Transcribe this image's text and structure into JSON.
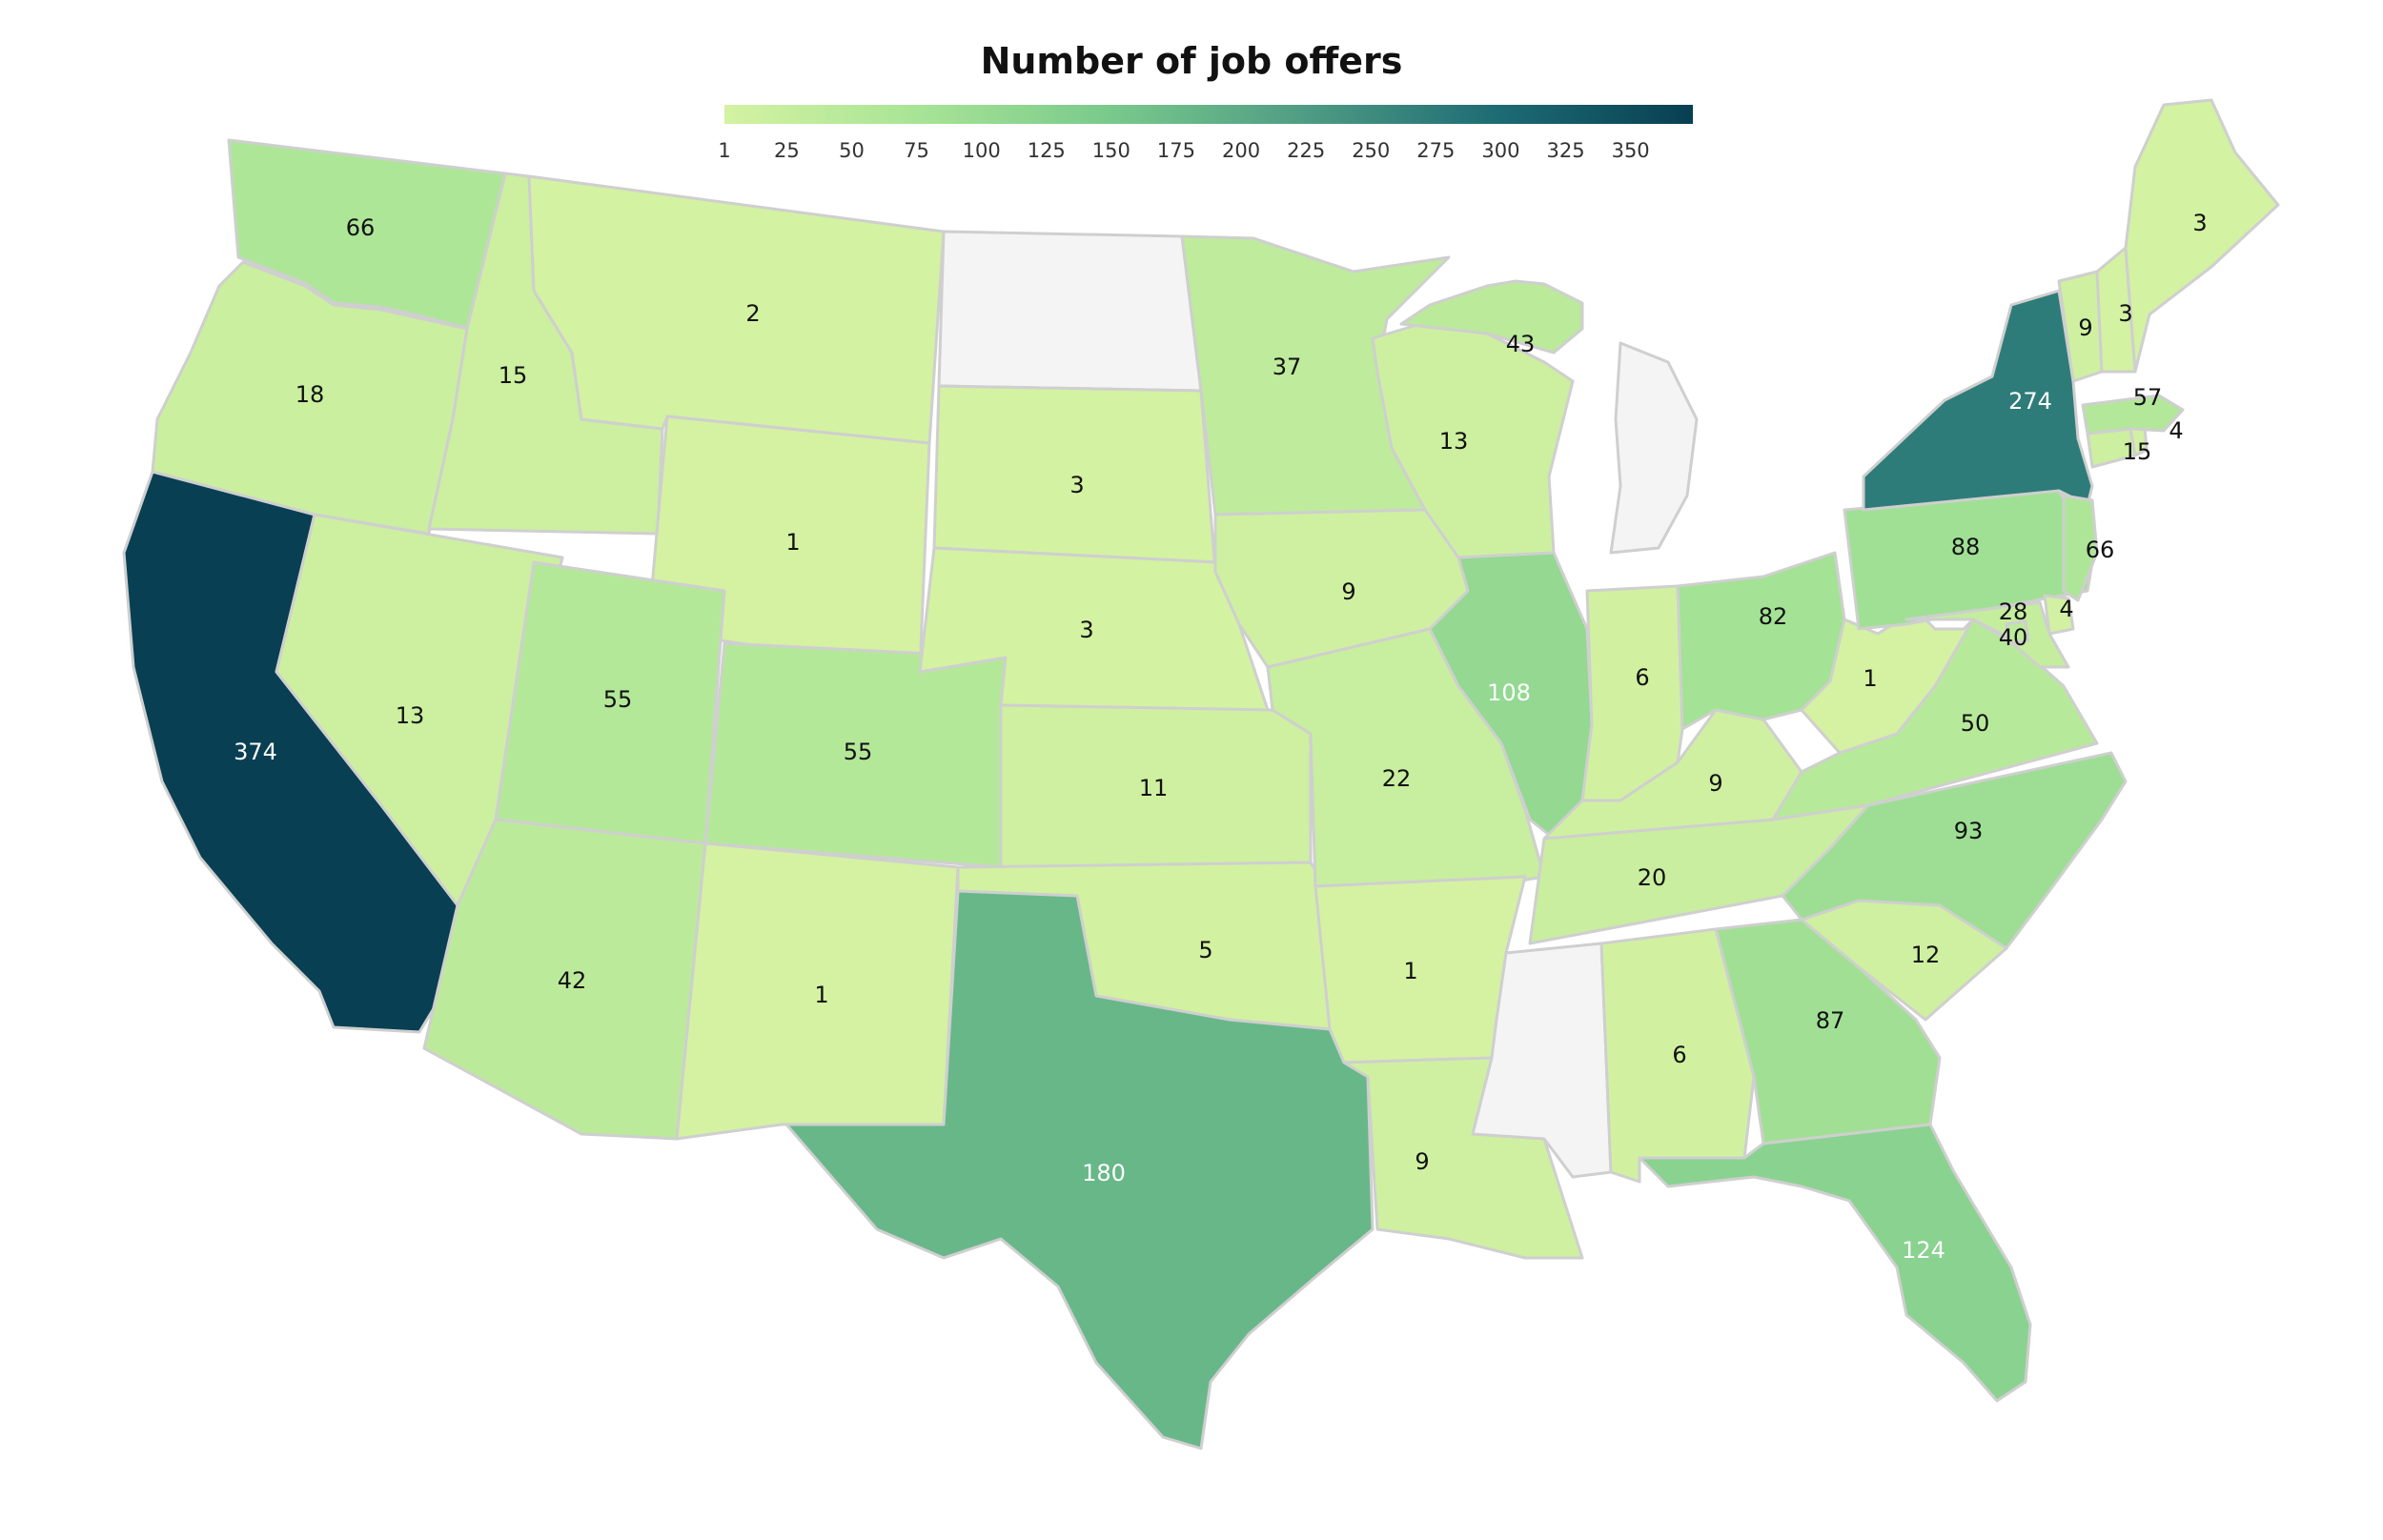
{
  "title": "Number of job offers",
  "legend": {
    "ticks": [
      "1",
      "25",
      "50",
      "75",
      "100",
      "125",
      "150",
      "175",
      "200",
      "225",
      "250",
      "275",
      "300",
      "325",
      "350"
    ],
    "tick_values": [
      1,
      25,
      50,
      75,
      100,
      125,
      150,
      175,
      200,
      225,
      250,
      275,
      300,
      325,
      350
    ],
    "range": [
      1,
      374
    ],
    "colors": [
      "#d4f2a2",
      "#a8e496",
      "#79c98c",
      "#4f9c84",
      "#1d6b74",
      "#083f52"
    ]
  },
  "no_data_color": "#f4f4f4",
  "states": [
    {
      "id": "WA",
      "value": 66
    },
    {
      "id": "OR",
      "value": 18
    },
    {
      "id": "CA",
      "value": 374
    },
    {
      "id": "ID",
      "value": 15
    },
    {
      "id": "NV",
      "value": 13
    },
    {
      "id": "MT",
      "value": 2
    },
    {
      "id": "WY",
      "value": 1
    },
    {
      "id": "UT",
      "value": 55
    },
    {
      "id": "AZ",
      "value": 42
    },
    {
      "id": "CO",
      "value": 55
    },
    {
      "id": "NM",
      "value": 1
    },
    {
      "id": "ND",
      "value": null
    },
    {
      "id": "SD",
      "value": 3
    },
    {
      "id": "NE",
      "value": 3
    },
    {
      "id": "KS",
      "value": 11
    },
    {
      "id": "OK",
      "value": 5
    },
    {
      "id": "TX",
      "value": 180
    },
    {
      "id": "MN",
      "value": 37
    },
    {
      "id": "IA",
      "value": 9
    },
    {
      "id": "MO",
      "value": 22
    },
    {
      "id": "AR",
      "value": 1
    },
    {
      "id": "LA",
      "value": 9
    },
    {
      "id": "WI",
      "value": 13
    },
    {
      "id": "IL",
      "value": 108
    },
    {
      "id": "MS",
      "value": null
    },
    {
      "id": "MI-UP",
      "value": 43
    },
    {
      "id": "MI",
      "value": null
    },
    {
      "id": "IN",
      "value": 6
    },
    {
      "id": "KY",
      "value": 9
    },
    {
      "id": "TN",
      "value": 20
    },
    {
      "id": "AL",
      "value": 6
    },
    {
      "id": "OH",
      "value": 82
    },
    {
      "id": "GA",
      "value": 87
    },
    {
      "id": "FL",
      "value": 124
    },
    {
      "id": "SC",
      "value": 12
    },
    {
      "id": "NC",
      "value": 93
    },
    {
      "id": "VA",
      "value": 50
    },
    {
      "id": "WV",
      "value": 1
    },
    {
      "id": "PA",
      "value": 88
    },
    {
      "id": "NY",
      "value": 274
    },
    {
      "id": "NJ",
      "value": 66
    },
    {
      "id": "DE",
      "value": 4
    },
    {
      "id": "MD",
      "value": 28
    },
    {
      "id": "DC",
      "value": 40
    },
    {
      "id": "CT",
      "value": 15
    },
    {
      "id": "RI",
      "value": 4
    },
    {
      "id": "MA",
      "value": 57
    },
    {
      "id": "VT",
      "value": 9
    },
    {
      "id": "NH",
      "value": 3
    },
    {
      "id": "ME",
      "value": 3
    }
  ]
}
